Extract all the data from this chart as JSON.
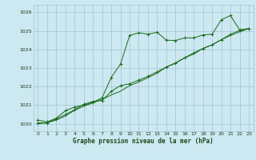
{
  "title": "Graphe pression niveau de la mer (hPa)",
  "bg_color": "#cce8f0",
  "grid_color": "#99bbcc",
  "line_color": "#1a6b1a",
  "marker_color": "#1a6b1a",
  "ylim": [
    1019.6,
    1026.4
  ],
  "xlim": [
    -0.5,
    23.5
  ],
  "yticks": [
    1020,
    1021,
    1022,
    1023,
    1024,
    1025,
    1026
  ],
  "xticks": [
    0,
    1,
    2,
    3,
    4,
    5,
    6,
    7,
    8,
    9,
    10,
    11,
    12,
    13,
    14,
    15,
    16,
    17,
    18,
    19,
    20,
    21,
    22,
    23
  ],
  "series": [
    [
      1020.2,
      1020.1,
      1020.3,
      1020.7,
      1020.9,
      1021.0,
      1021.15,
      1021.4,
      1022.5,
      1023.2,
      1024.75,
      1024.9,
      1024.82,
      1024.92,
      1024.5,
      1024.48,
      1024.62,
      1024.62,
      1024.78,
      1024.82,
      1025.6,
      1025.82,
      1025.05,
      1025.12
    ],
    [
      1020.05,
      1020.05,
      1020.25,
      1020.5,
      1020.75,
      1021.05,
      1021.2,
      1021.25,
      1021.75,
      1022.05,
      1022.15,
      1022.35,
      1022.55,
      1022.8,
      1023.05,
      1023.25,
      1023.55,
      1023.82,
      1024.05,
      1024.25,
      1024.52,
      1024.82,
      1025.02,
      1025.12
    ],
    [
      1020.0,
      1020.05,
      1020.2,
      1020.42,
      1020.72,
      1020.95,
      1021.12,
      1021.32,
      1021.55,
      1021.75,
      1022.05,
      1022.25,
      1022.48,
      1022.72,
      1023.05,
      1023.28,
      1023.55,
      1023.75,
      1024.05,
      1024.25,
      1024.52,
      1024.75,
      1024.95,
      1025.12
    ]
  ]
}
